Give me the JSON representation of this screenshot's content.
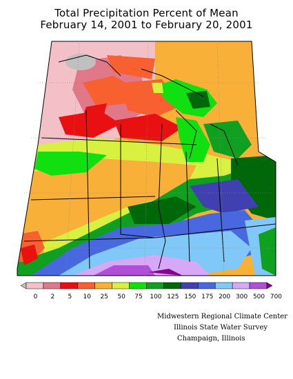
{
  "title": {
    "line1": "Total Precipitation Percent of Mean",
    "line2": "February 14, 2001 to February 20, 2001"
  },
  "legend": {
    "labels": [
      "0",
      "2",
      "5",
      "10",
      "25",
      "50",
      "75",
      "100",
      "125",
      "150",
      "175",
      "200",
      "300",
      "500",
      "700"
    ],
    "colors": [
      "#c0c0c0",
      "#f4c0c8",
      "#e07888",
      "#e81010",
      "#f86030",
      "#f8b038",
      "#d8f040",
      "#10e010",
      "#10a020",
      "#006808",
      "#4040b0",
      "#4868e0",
      "#80c8f8",
      "#d8a8f8",
      "#b050d8",
      "#880090"
    ]
  },
  "credits": {
    "line1": "Midwestern Regional Climate Center",
    "line2": "Illinois State Water Survey",
    "line3": "Champaign, Illinois"
  }
}
